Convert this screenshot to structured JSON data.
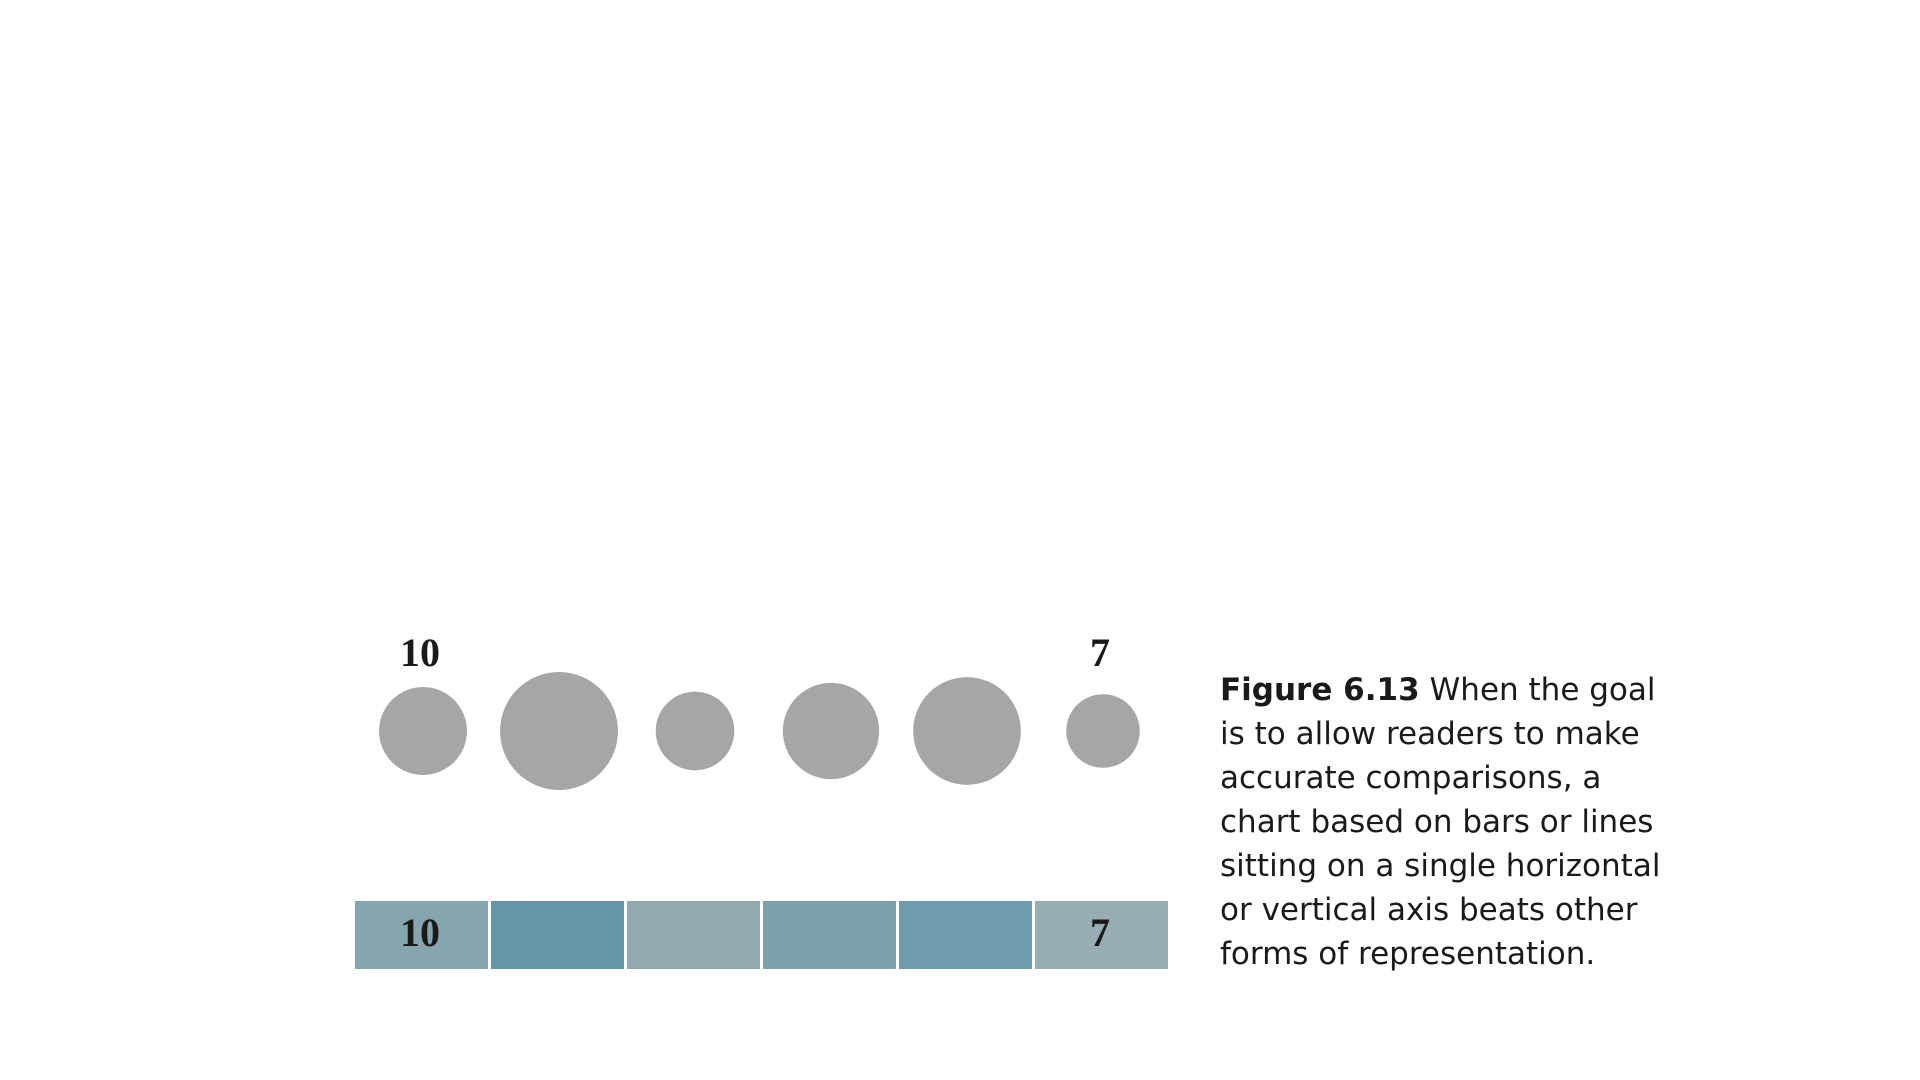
{
  "chart_data": {
    "type": "bubble-heat",
    "values": [
      10,
      18,
      8,
      12,
      15,
      7
    ],
    "value_labels": [
      "10",
      null,
      null,
      null,
      null,
      "7"
    ],
    "color": "#a6a6a6",
    "cell_colors": [
      "#87a5ae",
      "#6795a8",
      "#93a9b0",
      "#7ea0ab",
      "#6f9aab",
      "#98adb3"
    ],
    "caption_label": "Figure 6.13",
    "caption": "When the goal is to allow readers to make accurate comparisons, a chart based on bars or lines sitting on a single horizontal or vertical axis beats other forms of representation."
  }
}
